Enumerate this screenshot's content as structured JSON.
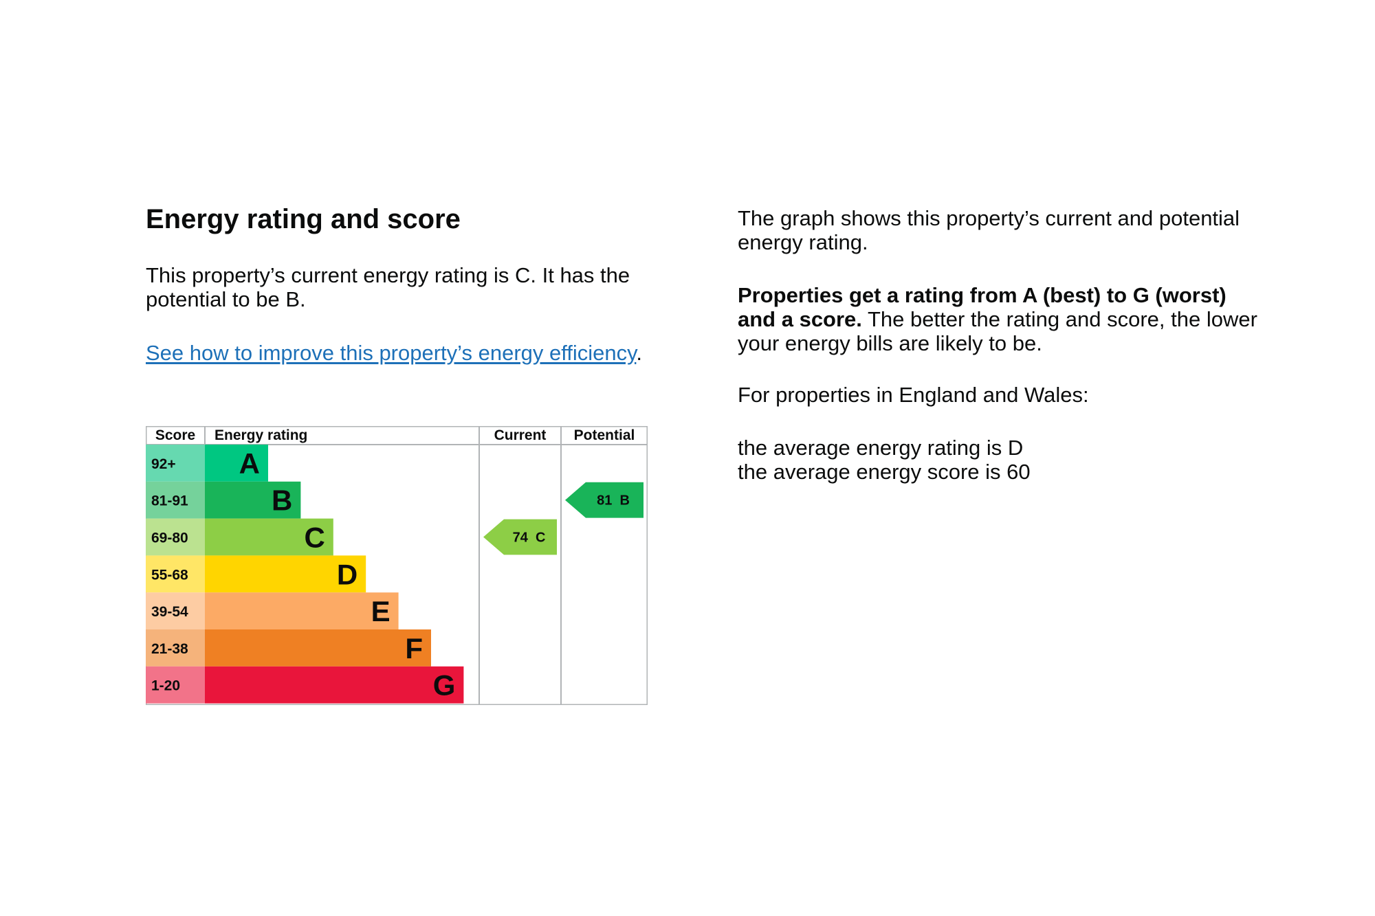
{
  "heading": "Energy rating and score",
  "intro": "This property’s current energy rating is C. It has the potential to be B.",
  "improve_link": "See how to improve this property’s energy efficiency",
  "improve_link_suffix": ".",
  "right": {
    "graph_text": "The graph shows this property’s current and potential energy rating.",
    "rating_bold": "Properties get a rating from A (best) to G (worst) and a score.",
    "rating_rest": " The better the rating and score, the lower your energy bills are likely to be.",
    "region_text": "For properties in England and Wales:",
    "avg_rating": "the average energy rating is D",
    "avg_score": "the average energy score is 60"
  },
  "chart_data": {
    "type": "bar",
    "headers": {
      "score": "Score",
      "rating": "Energy rating",
      "current": "Current",
      "potential": "Potential"
    },
    "bands": [
      {
        "letter": "A",
        "range": "92+",
        "color": "#00c781",
        "light": "#66d9b0",
        "width_level": 1
      },
      {
        "letter": "B",
        "range": "81-91",
        "color": "#19b459",
        "light": "#75d29b",
        "width_level": 2
      },
      {
        "letter": "C",
        "range": "69-80",
        "color": "#8dce46",
        "light": "#bbe290",
        "width_level": 3
      },
      {
        "letter": "D",
        "range": "55-68",
        "color": "#ffd500",
        "light": "#ffe666",
        "width_level": 4
      },
      {
        "letter": "E",
        "range": "39-54",
        "color": "#fcaa65",
        "light": "#fdcca3",
        "width_level": 5
      },
      {
        "letter": "F",
        "range": "21-38",
        "color": "#ef8023",
        "light": "#f5b37b",
        "width_level": 6
      },
      {
        "letter": "G",
        "range": "1-20",
        "color": "#e9153b",
        "light": "#f27389",
        "width_level": 7
      }
    ],
    "current": {
      "score": 74,
      "letter": "C",
      "label": "74  C",
      "color": "#8dce46"
    },
    "potential": {
      "score": 81,
      "letter": "B",
      "label": "81  B",
      "color": "#19b459"
    }
  }
}
